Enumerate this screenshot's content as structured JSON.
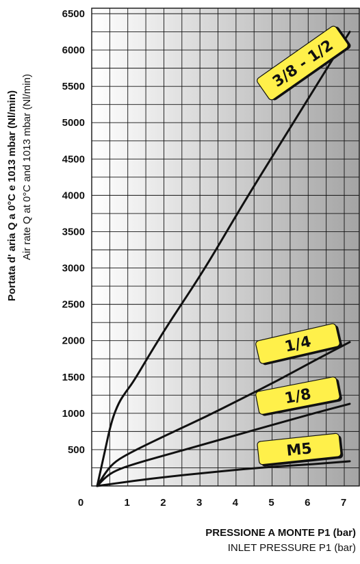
{
  "chart_data": {
    "type": "line",
    "xlabel": "PRESSIONE A MONTE P1 (bar)",
    "xlabel_en": "INLET PRESSURE P1 (bar)",
    "ylabel": "Portata d' aria Q a 0°C e 1013 mbar (Nl/min)",
    "ylabel_en": "Air rate Q at 0°C and 1013 mbar (Nl/min)",
    "xlim": [
      0,
      7
    ],
    "ylim": [
      0,
      6500
    ],
    "x_ticks": [
      "0",
      "1",
      "2",
      "3",
      "4",
      "5",
      "6",
      "7"
    ],
    "y_ticks": [
      "500",
      "1000",
      "1500",
      "2000",
      "2500",
      "3000",
      "3500",
      "4000",
      "4500",
      "5000",
      "5500",
      "6000",
      "6500"
    ],
    "grid": true,
    "label_color": "#FFF04A",
    "series": [
      {
        "name": "3/8 - 1/2",
        "x": [
          0,
          0.2,
          0.4,
          0.6,
          0.8,
          1,
          1.5,
          2,
          3,
          4,
          5,
          6,
          7
        ],
        "y": [
          0,
          450,
          900,
          1150,
          1300,
          1430,
          1850,
          2250,
          3000,
          3850,
          4650,
          5450,
          6250
        ]
      },
      {
        "name": "1/4",
        "x": [
          0,
          0.25,
          0.5,
          1,
          2,
          3,
          4,
          5,
          6,
          7
        ],
        "y": [
          0,
          200,
          340,
          480,
          720,
          950,
          1200,
          1450,
          1720,
          1980
        ]
      },
      {
        "name": "1/8",
        "x": [
          0,
          0.25,
          0.5,
          1,
          2,
          3,
          4,
          5,
          6,
          7
        ],
        "y": [
          0,
          130,
          210,
          300,
          440,
          580,
          720,
          860,
          1000,
          1130
        ]
      },
      {
        "name": "M5",
        "x": [
          0,
          1,
          2,
          3,
          4,
          5,
          6,
          7
        ],
        "y": [
          0,
          70,
          130,
          180,
          230,
          270,
          300,
          340
        ]
      }
    ]
  }
}
